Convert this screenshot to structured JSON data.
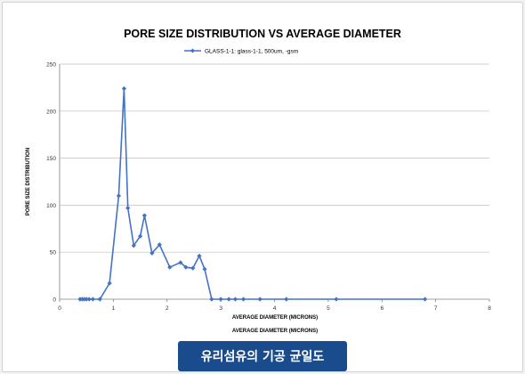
{
  "chart_data": {
    "type": "line",
    "title": "PORE SIZE DISTRIBUTION VS AVERAGE DIAMETER",
    "xlabel": "AVERAGE DIAMETER (MICRONS)",
    "xlabel_secondary": "AVERAGE DIAMETER (MICRONS)",
    "ylabel": "PORE SIZE DISTRIBUTION",
    "xlim": [
      0,
      8
    ],
    "ylim": [
      0,
      250
    ],
    "xticks": [
      0,
      1,
      2,
      3,
      4,
      5,
      6,
      7,
      8
    ],
    "yticks": [
      0,
      50,
      100,
      150,
      200,
      250
    ],
    "grid": "horizontal",
    "legend": "top",
    "colors": {
      "series": "#4472c4"
    },
    "series": [
      {
        "name": "GLASS-1-1: glass-1-1, 500um, -gsm",
        "x": [
          0.38,
          0.42,
          0.46,
          0.5,
          0.55,
          0.62,
          0.75,
          0.93,
          1.1,
          1.2,
          1.27,
          1.38,
          1.5,
          1.58,
          1.72,
          1.86,
          2.05,
          2.25,
          2.35,
          2.48,
          2.6,
          2.7,
          2.83,
          3.0,
          3.15,
          3.27,
          3.42,
          3.73,
          4.22,
          5.15,
          6.8
        ],
        "y": [
          0,
          0,
          0,
          0,
          0,
          0,
          0,
          17,
          110,
          224,
          97,
          57,
          67,
          89,
          49,
          58,
          34,
          39,
          34,
          33,
          46,
          32,
          0,
          0,
          0,
          0,
          0,
          0,
          0,
          0,
          0
        ]
      }
    ]
  },
  "caption": "유리섬유의 기공 균일도"
}
